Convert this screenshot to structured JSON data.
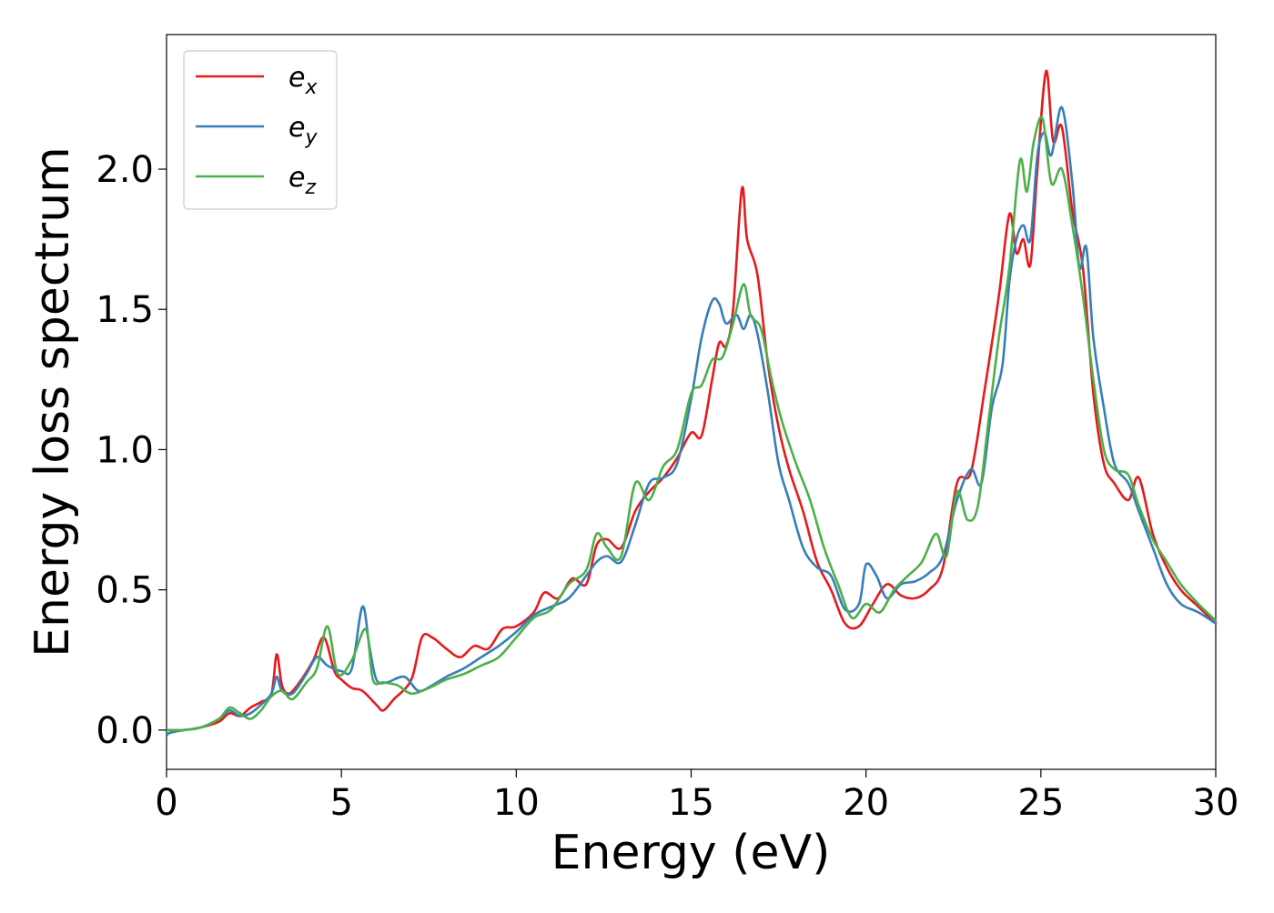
{
  "chart_data": {
    "type": "line",
    "title": "",
    "xlabel": "Energy (eV)",
    "ylabel": "Energy loss spectrum",
    "xlim": [
      0,
      30
    ],
    "ylim": [
      -0.14,
      2.48
    ],
    "xticks": [
      0,
      5,
      10,
      15,
      20,
      25,
      30
    ],
    "xtick_labels": [
      "0",
      "5",
      "10",
      "15",
      "20",
      "25",
      "30"
    ],
    "yticks": [
      0.0,
      0.5,
      1.0,
      1.5,
      2.0
    ],
    "ytick_labels": [
      "0.0",
      "0.5",
      "1.0",
      "1.5",
      "2.0"
    ],
    "grid": false,
    "legend_position": "top-left",
    "series": [
      {
        "name": "e_x",
        "label_base": "e",
        "label_sub": "x",
        "color": "#e41a1c",
        "x": [
          0,
          0.5,
          1,
          1.5,
          1.8,
          2.1,
          2.4,
          2.7,
          3.0,
          3.15,
          3.3,
          3.5,
          3.8,
          4.2,
          4.5,
          4.8,
          5.0,
          5.3,
          5.6,
          6.0,
          6.2,
          6.5,
          7.0,
          7.3,
          7.6,
          8.0,
          8.4,
          8.8,
          9.2,
          9.6,
          10.0,
          10.5,
          10.8,
          11.2,
          11.6,
          12.0,
          12.3,
          12.6,
          13.0,
          13.4,
          13.8,
          14.2,
          14.6,
          15.0,
          15.3,
          15.6,
          15.8,
          16.0,
          16.2,
          16.45,
          16.6,
          16.9,
          17.2,
          17.5,
          17.8,
          18.2,
          18.6,
          19.0,
          19.4,
          19.8,
          20.2,
          20.6,
          21.0,
          21.4,
          21.8,
          22.2,
          22.6,
          23.0,
          23.4,
          23.8,
          24.1,
          24.3,
          24.5,
          24.7,
          24.9,
          25.15,
          25.35,
          25.6,
          25.9,
          26.2,
          26.5,
          26.8,
          27.1,
          27.5,
          27.8,
          28.2,
          28.6,
          29.0,
          29.5,
          30.0
        ],
        "y": [
          0.0,
          0.0,
          0.01,
          0.03,
          0.06,
          0.05,
          0.08,
          0.1,
          0.13,
          0.27,
          0.16,
          0.13,
          0.17,
          0.25,
          0.33,
          0.21,
          0.18,
          0.15,
          0.14,
          0.09,
          0.07,
          0.11,
          0.18,
          0.33,
          0.33,
          0.29,
          0.26,
          0.3,
          0.29,
          0.36,
          0.37,
          0.42,
          0.49,
          0.47,
          0.54,
          0.52,
          0.66,
          0.68,
          0.65,
          0.78,
          0.85,
          0.9,
          0.97,
          1.06,
          1.05,
          1.25,
          1.38,
          1.37,
          1.5,
          1.93,
          1.75,
          1.62,
          1.3,
          1.08,
          0.93,
          0.78,
          0.6,
          0.5,
          0.38,
          0.37,
          0.45,
          0.52,
          0.48,
          0.47,
          0.5,
          0.58,
          0.88,
          0.92,
          1.22,
          1.55,
          1.84,
          1.7,
          1.75,
          1.66,
          2.0,
          2.35,
          2.1,
          2.15,
          1.85,
          1.65,
          1.2,
          0.95,
          0.88,
          0.82,
          0.9,
          0.7,
          0.58,
          0.5,
          0.44,
          0.38
        ]
      },
      {
        "name": "e_y",
        "label_base": "e",
        "label_sub": "y",
        "color": "#377eb8",
        "x": [
          0,
          0.1,
          0.5,
          1,
          1.5,
          1.8,
          2.1,
          2.4,
          2.7,
          3.0,
          3.15,
          3.3,
          3.6,
          4.0,
          4.3,
          4.6,
          5.0,
          5.3,
          5.6,
          5.8,
          6.0,
          6.3,
          6.8,
          7.2,
          7.6,
          8.0,
          8.5,
          9.0,
          9.5,
          10.0,
          10.5,
          11.0,
          11.5,
          12.0,
          12.3,
          12.6,
          13.0,
          13.4,
          13.8,
          14.2,
          14.6,
          15.0,
          15.3,
          15.6,
          15.8,
          16.0,
          16.3,
          16.5,
          16.7,
          16.9,
          17.2,
          17.5,
          17.8,
          18.2,
          18.6,
          19.0,
          19.4,
          19.8,
          20.0,
          20.3,
          20.6,
          21.0,
          21.4,
          21.8,
          22.2,
          22.6,
          23.0,
          23.3,
          23.6,
          23.9,
          24.1,
          24.3,
          24.5,
          24.7,
          24.9,
          25.1,
          25.3,
          25.6,
          25.9,
          26.1,
          26.3,
          26.5,
          26.8,
          27.1,
          27.5,
          27.8,
          28.2,
          28.6,
          29.0,
          29.5,
          30.0
        ],
        "y": [
          -0.02,
          -0.01,
          0.0,
          0.01,
          0.04,
          0.07,
          0.05,
          0.06,
          0.09,
          0.13,
          0.19,
          0.14,
          0.13,
          0.2,
          0.26,
          0.23,
          0.21,
          0.22,
          0.44,
          0.3,
          0.18,
          0.17,
          0.19,
          0.14,
          0.16,
          0.19,
          0.22,
          0.26,
          0.3,
          0.35,
          0.41,
          0.44,
          0.47,
          0.55,
          0.6,
          0.62,
          0.6,
          0.73,
          0.88,
          0.9,
          0.95,
          1.18,
          1.4,
          1.53,
          1.52,
          1.45,
          1.48,
          1.43,
          1.48,
          1.41,
          1.2,
          0.95,
          0.82,
          0.65,
          0.58,
          0.55,
          0.43,
          0.45,
          0.59,
          0.55,
          0.47,
          0.52,
          0.53,
          0.56,
          0.62,
          0.82,
          0.93,
          0.88,
          1.15,
          1.3,
          1.6,
          1.75,
          1.8,
          1.75,
          2.05,
          2.13,
          2.05,
          2.22,
          1.95,
          1.65,
          1.72,
          1.4,
          1.15,
          0.95,
          0.88,
          0.78,
          0.65,
          0.52,
          0.45,
          0.42,
          0.38
        ]
      },
      {
        "name": "e_z",
        "label_base": "e",
        "label_sub": "z",
        "color": "#4daf4a",
        "x": [
          0,
          0.5,
          1,
          1.5,
          1.8,
          2.1,
          2.4,
          2.7,
          3.0,
          3.3,
          3.6,
          4.0,
          4.3,
          4.6,
          4.9,
          5.3,
          5.7,
          5.9,
          6.2,
          6.6,
          7.0,
          7.5,
          8.0,
          8.5,
          9.0,
          9.5,
          10.0,
          10.5,
          11.0,
          11.5,
          12.0,
          12.3,
          12.6,
          13.0,
          13.4,
          13.8,
          14.2,
          14.6,
          15.0,
          15.3,
          15.6,
          15.9,
          16.2,
          16.5,
          16.7,
          17.0,
          17.3,
          17.6,
          18.0,
          18.4,
          18.8,
          19.2,
          19.6,
          20.0,
          20.4,
          20.8,
          21.2,
          21.6,
          22.0,
          22.3,
          22.6,
          22.9,
          23.2,
          23.5,
          23.8,
          24.1,
          24.4,
          24.6,
          24.8,
          25.05,
          25.3,
          25.6,
          25.9,
          26.2,
          26.5,
          26.8,
          27.1,
          27.5,
          27.8,
          28.2,
          28.6,
          29.0,
          29.5,
          30.0
        ],
        "y": [
          0.0,
          0.0,
          0.01,
          0.04,
          0.08,
          0.06,
          0.04,
          0.07,
          0.12,
          0.14,
          0.11,
          0.17,
          0.22,
          0.37,
          0.2,
          0.25,
          0.36,
          0.18,
          0.17,
          0.16,
          0.13,
          0.15,
          0.18,
          0.2,
          0.23,
          0.26,
          0.33,
          0.4,
          0.43,
          0.52,
          0.57,
          0.7,
          0.65,
          0.62,
          0.88,
          0.82,
          0.94,
          1.0,
          1.2,
          1.23,
          1.32,
          1.33,
          1.45,
          1.59,
          1.48,
          1.43,
          1.25,
          1.1,
          0.95,
          0.82,
          0.65,
          0.52,
          0.4,
          0.45,
          0.42,
          0.5,
          0.55,
          0.6,
          0.7,
          0.62,
          0.85,
          0.75,
          0.8,
          1.1,
          1.4,
          1.65,
          2.03,
          1.92,
          2.1,
          2.18,
          1.95,
          2.0,
          1.8,
          1.55,
          1.25,
          1.0,
          0.93,
          0.91,
          0.8,
          0.68,
          0.6,
          0.52,
          0.45,
          0.39
        ]
      }
    ]
  }
}
